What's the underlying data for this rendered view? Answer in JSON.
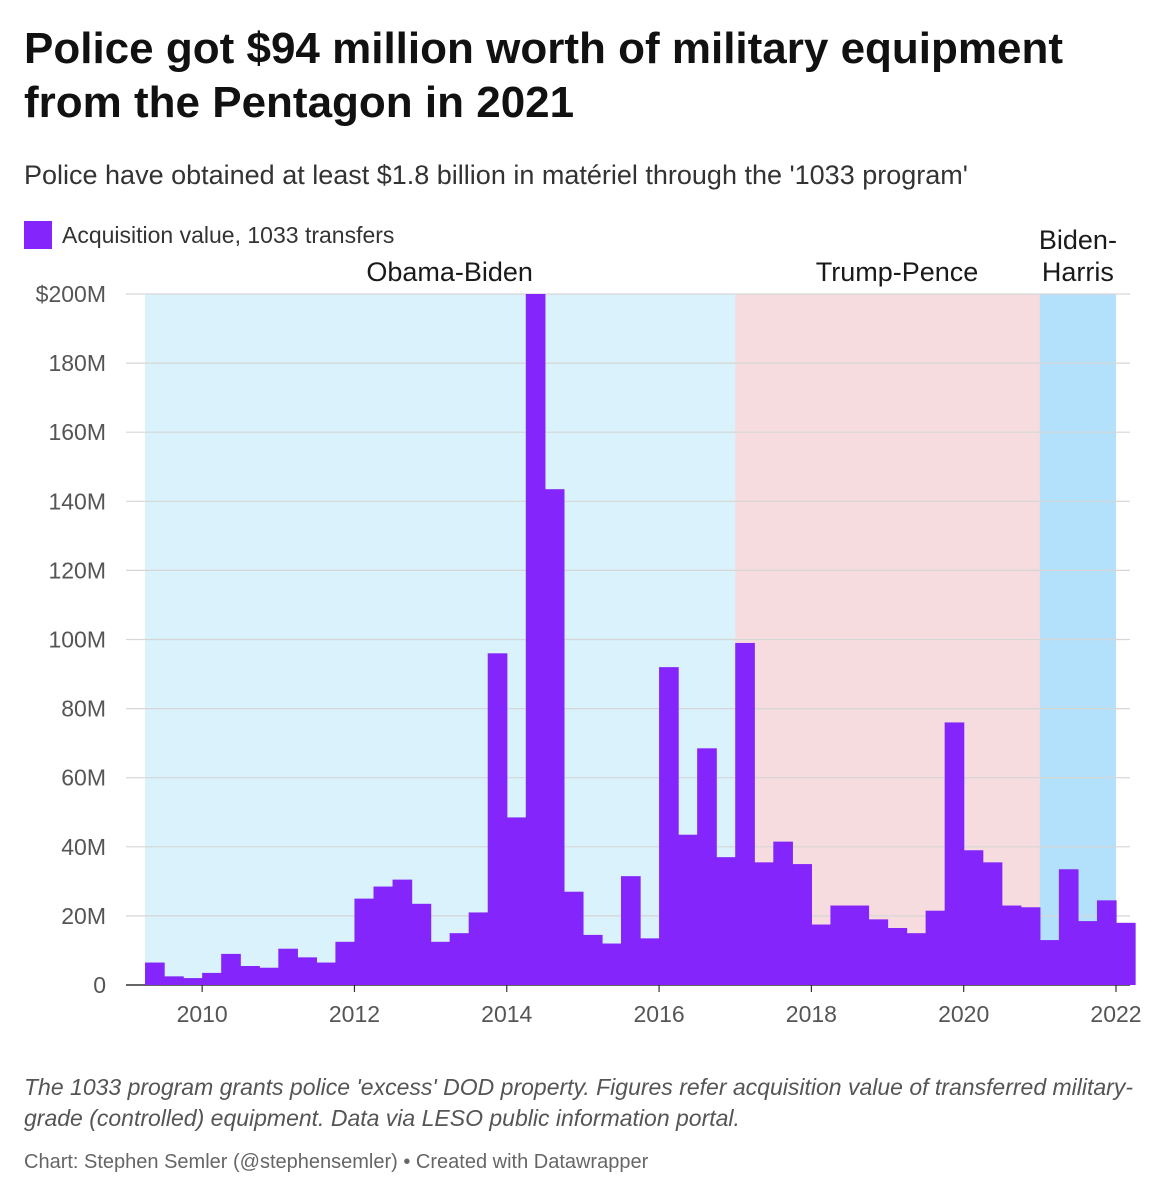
{
  "title": "Police got $94 million worth of military equipment from the Pentagon in 2021",
  "subtitle": "Police have obtained at least $1.8 billion in matériel through the '1033 program'",
  "note": "The 1033 program grants police 'excess' DOD property. Figures refer acquisition value of transferred military-grade (controlled) equipment. Data via LESO public information portal.",
  "credit": "Chart: Stephen Semler (@stephensemler) • Created with Datawrapper",
  "colors": {
    "bar": "#8325fb",
    "obama": "#d9f2fb",
    "trump": "#f6dcdf",
    "biden": "#b3e0fb",
    "grid": "#d6d6d6",
    "axis": "#333333"
  },
  "chart_data": {
    "type": "bar",
    "series": [
      {
        "name": "Acquisition value, 1033 transfers",
        "color": "#8325fb"
      }
    ],
    "xlim": [
      "2009-01",
      "2022-01"
    ],
    "ylim": [
      0,
      200
    ],
    "y_unit": "M",
    "grid": true,
    "legend_position": "top-left",
    "x_ticks": [
      "2010",
      "2012",
      "2014",
      "2016",
      "2018",
      "2020",
      "2022"
    ],
    "y_ticks": [
      {
        "value": 0,
        "label": "0"
      },
      {
        "value": 20,
        "label": "20M"
      },
      {
        "value": 40,
        "label": "40M"
      },
      {
        "value": 60,
        "label": "60M"
      },
      {
        "value": 80,
        "label": "80M"
      },
      {
        "value": 100,
        "label": "100M"
      },
      {
        "value": 120,
        "label": "120M"
      },
      {
        "value": 140,
        "label": "140M"
      },
      {
        "value": 160,
        "label": "160M"
      },
      {
        "value": 180,
        "label": "180M"
      },
      {
        "value": 200,
        "label": "$200M"
      }
    ],
    "periods": [
      {
        "label": "Obama-Biden",
        "start": "2009-04",
        "end": "2017-01",
        "color": "#d9f2fb"
      },
      {
        "label": "Trump-Pence",
        "start": "2017-01",
        "end": "2021-01",
        "color": "#f6dcdf"
      },
      {
        "label": "Biden-Harris",
        "start": "2021-01",
        "end": "2021-10",
        "color": "#b3e0fb"
      }
    ],
    "periods_axis": {
      "label_lines": [
        [
          "Obama-Biden"
        ],
        [
          "Trump-Pence"
        ],
        [
          "Biden-",
          "Harris"
        ]
      ]
    },
    "data": [
      {
        "x": "2009-04",
        "y": 6.5
      },
      {
        "x": "2009-07",
        "y": 2.5
      },
      {
        "x": "2009-10",
        "y": 2.0
      },
      {
        "x": "2010-01",
        "y": 3.5
      },
      {
        "x": "2010-04",
        "y": 9.0
      },
      {
        "x": "2010-07",
        "y": 5.5
      },
      {
        "x": "2010-10",
        "y": 5.0
      },
      {
        "x": "2011-01",
        "y": 10.5
      },
      {
        "x": "2011-04",
        "y": 8.0
      },
      {
        "x": "2011-07",
        "y": 6.5
      },
      {
        "x": "2011-10",
        "y": 12.5
      },
      {
        "x": "2012-01",
        "y": 25.0
      },
      {
        "x": "2012-04",
        "y": 28.5
      },
      {
        "x": "2012-07",
        "y": 30.5
      },
      {
        "x": "2012-10",
        "y": 23.5
      },
      {
        "x": "2013-01",
        "y": 12.5
      },
      {
        "x": "2013-04",
        "y": 15.0
      },
      {
        "x": "2013-07",
        "y": 21.0
      },
      {
        "x": "2013-10",
        "y": 96.0
      },
      {
        "x": "2014-01",
        "y": 48.5
      },
      {
        "x": "2014-04",
        "y": 200.0
      },
      {
        "x": "2014-07",
        "y": 143.5
      },
      {
        "x": "2014-10",
        "y": 27.0
      },
      {
        "x": "2015-01",
        "y": 14.5
      },
      {
        "x": "2015-04",
        "y": 12.0
      },
      {
        "x": "2015-07",
        "y": 31.5
      },
      {
        "x": "2015-10",
        "y": 13.5
      },
      {
        "x": "2016-01",
        "y": 92.0
      },
      {
        "x": "2016-04",
        "y": 43.5
      },
      {
        "x": "2016-07",
        "y": 68.5
      },
      {
        "x": "2016-10",
        "y": 37.0
      },
      {
        "x": "2017-01",
        "y": 99.0
      },
      {
        "x": "2017-04",
        "y": 35.5
      },
      {
        "x": "2017-07",
        "y": 41.5
      },
      {
        "x": "2017-10",
        "y": 35.0
      },
      {
        "x": "2018-01",
        "y": 17.5
      },
      {
        "x": "2018-04",
        "y": 23.0
      },
      {
        "x": "2018-07",
        "y": 23.0
      },
      {
        "x": "2018-10",
        "y": 19.0
      },
      {
        "x": "2019-01",
        "y": 16.5
      },
      {
        "x": "2019-04",
        "y": 15.0
      },
      {
        "x": "2019-07",
        "y": 21.5
      },
      {
        "x": "2019-10",
        "y": 76.0
      },
      {
        "x": "2020-01",
        "y": 39.0
      },
      {
        "x": "2020-04",
        "y": 35.5
      },
      {
        "x": "2020-07",
        "y": 23.0
      },
      {
        "x": "2020-10",
        "y": 22.5
      },
      {
        "x": "2021-01",
        "y": 13.0
      },
      {
        "x": "2021-04",
        "y": 33.5
      },
      {
        "x": "2021-07",
        "y": 18.5
      },
      {
        "x": "2021-10",
        "y": 24.5
      },
      {
        "x": "2022-01",
        "y": 18.0
      }
    ]
  }
}
